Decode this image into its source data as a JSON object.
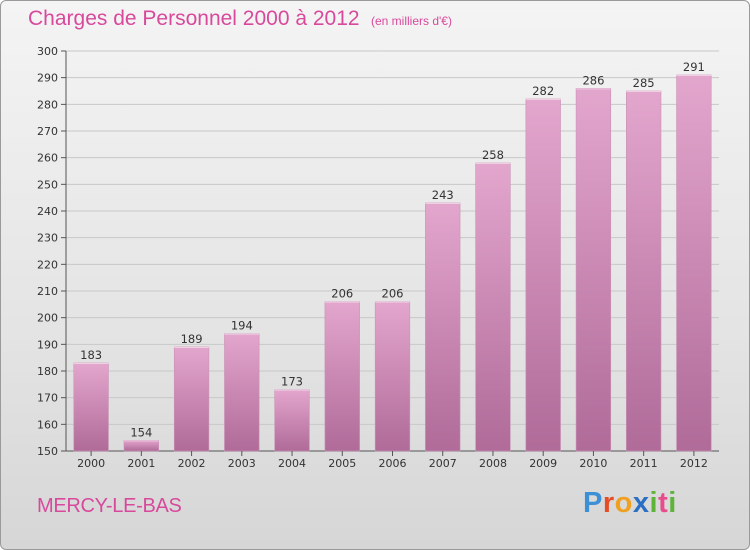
{
  "header": {
    "title": "Charges de Personnel 2000 à 2012",
    "subtitle": "(en milliers d'€)"
  },
  "footer": {
    "place": "MERCY-LE-BAS",
    "logo_text": "Proxiti"
  },
  "colors": {
    "accent": "#d8499c",
    "bar_top": "#e3a6cd",
    "bar_bottom": "#b06b99",
    "grid": "#c8c8c8"
  },
  "chart_data": {
    "type": "bar",
    "title": "Charges de Personnel 2000 à 2012",
    "subtitle": "(en milliers d'€)",
    "xlabel": "",
    "ylabel": "",
    "categories": [
      "2000",
      "2001",
      "2002",
      "2003",
      "2004",
      "2005",
      "2006",
      "2007",
      "2008",
      "2009",
      "2010",
      "2011",
      "2012"
    ],
    "values": [
      183,
      154,
      189,
      194,
      173,
      206,
      206,
      243,
      258,
      282,
      286,
      285,
      291
    ],
    "ylim": [
      150,
      300
    ],
    "yticks": [
      150,
      160,
      170,
      180,
      190,
      200,
      210,
      220,
      230,
      240,
      250,
      260,
      270,
      280,
      290,
      300
    ],
    "grid": true,
    "legend": "none"
  }
}
